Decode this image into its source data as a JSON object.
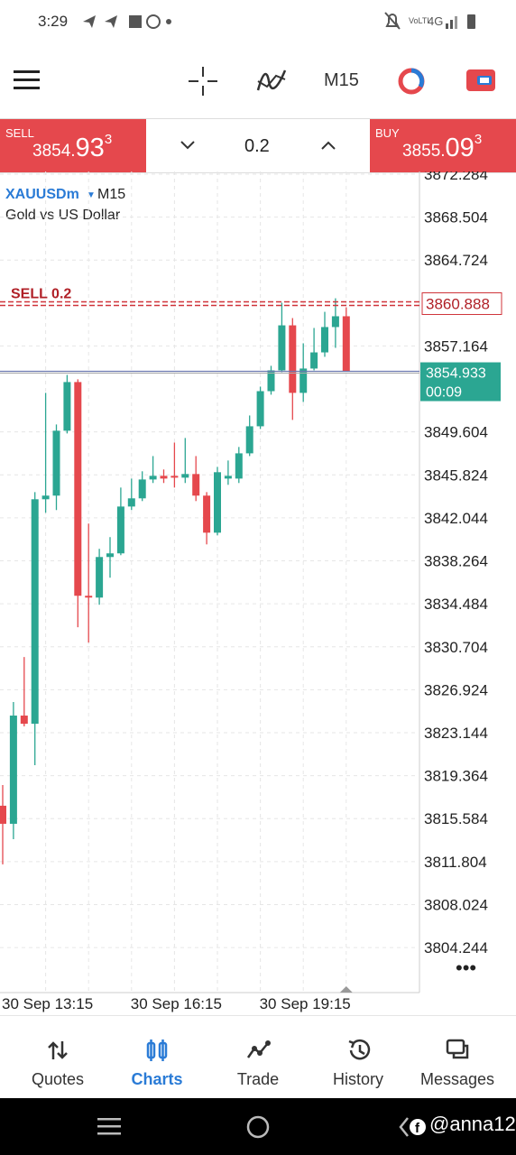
{
  "status_bar": {
    "time": "3:29",
    "network": "4G"
  },
  "toolbar": {
    "timeframe": "M15"
  },
  "sell": {
    "label": "SELL",
    "price_main": "3854.",
    "price_big": "93",
    "price_sup": "3"
  },
  "buy": {
    "label": "BUY",
    "price_main": "3855.",
    "price_big": "09",
    "price_sup": "3"
  },
  "volume": "0.2",
  "chart_data": {
    "type": "candlestick",
    "symbol": "XAUUSDm",
    "timeframe": "M15",
    "description": "Gold vs US Dollar",
    "categories": [
      "30 Sep 13:15",
      null,
      null,
      null,
      null,
      null,
      null,
      null,
      null,
      null,
      null,
      null,
      "30 Sep 16:15",
      null,
      null,
      null,
      null,
      null,
      null,
      null,
      null,
      null,
      null,
      null,
      "30 Sep 19:15",
      null,
      null,
      null,
      null,
      null,
      null,
      null,
      null
    ],
    "open": [
      3816.72,
      3815.13,
      3824.65,
      3823.93,
      3843.68,
      3844,
      3849.71,
      3853.99,
      3835.19,
      3835.03,
      3838.6,
      3838.92,
      3843.04,
      3843.76,
      3845.42,
      3845.74,
      3845.74,
      3845.58,
      3845.9,
      3844,
      3840.74,
      3845.5,
      3845.5,
      3847.72,
      3850.1,
      3853.19,
      3855.02,
      3858.98,
      3853.04,
      3855.18,
      3856.6,
      3858.83,
      3859.78
    ],
    "high": [
      3818.54,
      3825.84,
      3829.8,
      3844.31,
      3853.04,
      3850.26,
      3854.62,
      3854.23,
      3841.54,
      3839.32,
      3840.35,
      3844.71,
      3845.5,
      3846.14,
      3847.48,
      3846.3,
      3848.67,
      3849.07,
      3847.48,
      3844.31,
      3846.53,
      3847.09,
      3848.28,
      3851.05,
      3853.59,
      3855.42,
      3860.97,
      3859.62,
      3857.4,
      3858.75,
      3860.17,
      3861.36,
      3860.57
    ],
    "low": [
      3811.56,
      3813.78,
      3823.7,
      3820.29,
      3842.49,
      3842.73,
      3849.47,
      3832.42,
      3831.07,
      3834.4,
      3836.78,
      3838.76,
      3842.73,
      3843.52,
      3845.11,
      3845.11,
      3844.71,
      3845.11,
      3843.52,
      3839.71,
      3840.51,
      3844.95,
      3845.11,
      3847.48,
      3849.86,
      3852.88,
      3854.86,
      3850.66,
      3852.24,
      3855.02,
      3856.21,
      3857,
      3854.93
    ],
    "close": [
      3815.13,
      3824.65,
      3823.93,
      3843.68,
      3844,
      3849.71,
      3853.99,
      3835.19,
      3835.03,
      3838.6,
      3838.92,
      3843.04,
      3843.76,
      3845.42,
      3845.74,
      3845.5,
      3845.58,
      3845.9,
      3844,
      3840.74,
      3846.06,
      3845.74,
      3847.72,
      3850.1,
      3853.19,
      3855.02,
      3858.98,
      3853.04,
      3855.18,
      3856.6,
      3858.83,
      3859.78,
      3854.933
    ],
    "up_color": "#2ba692",
    "down_color": "#e5484d",
    "ylim": [
      3800.44,
      3872.36
    ],
    "yticks": [
      3872.284,
      3868.504,
      3864.724,
      3857.164,
      3849.604,
      3845.824,
      3842.044,
      3838.264,
      3834.484,
      3830.704,
      3826.924,
      3823.144,
      3819.364,
      3815.584,
      3811.804,
      3808.024,
      3804.244
    ],
    "grid": true,
    "order_line": {
      "label": "SELL 0.2",
      "value": 3860.888
    },
    "current_price": {
      "value": 3854.933,
      "timer": "00:09"
    }
  },
  "nav": {
    "items": [
      "Quotes",
      "Charts",
      "Trade",
      "History",
      "Messages"
    ],
    "active": 1
  },
  "watermark": "@anna12"
}
